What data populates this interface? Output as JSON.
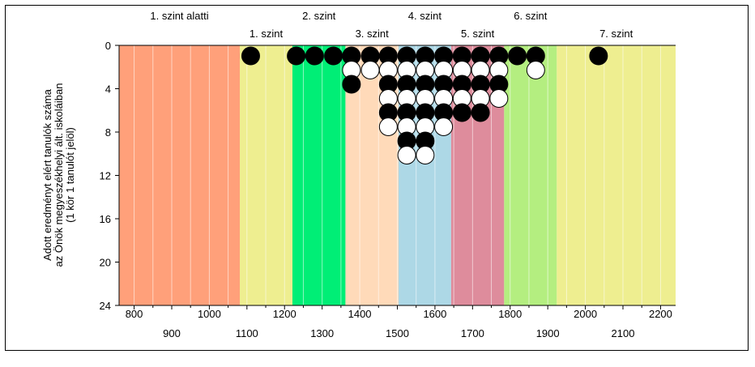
{
  "chart_data": {
    "type": "scatter",
    "ylabel_lines": [
      "Adott eredményt elért tanulók száma",
      "az Önök megyeszékhelyi ált. iskoláiban",
      "(1 kör 1 tanulót jelöl)"
    ],
    "xlim": [
      760,
      2240
    ],
    "ylim": [
      24,
      0
    ],
    "y_ticks": [
      0,
      4,
      8,
      12,
      16,
      20,
      24
    ],
    "x_ticks_upper": [
      800,
      1000,
      1200,
      1400,
      1600,
      1800,
      2000,
      2200
    ],
    "x_ticks_lower": [
      900,
      1100,
      1300,
      1500,
      1700,
      1900,
      2100
    ],
    "grid": "vertical every 50",
    "levels": [
      {
        "label": "1. szint alatti",
        "from": 760,
        "to": 1081,
        "color": "#ffa07a",
        "row": "top"
      },
      {
        "label": "1. szint",
        "from": 1081,
        "to": 1221,
        "color": "#eeee90",
        "row": "bottom"
      },
      {
        "label": "2. szint",
        "from": 1221,
        "to": 1362,
        "color": "#00ee76",
        "row": "top"
      },
      {
        "label": "3. szint",
        "from": 1362,
        "to": 1503,
        "color": "#ffdab9",
        "row": "bottom"
      },
      {
        "label": "4. szint",
        "from": 1503,
        "to": 1643,
        "color": "#add8e6",
        "row": "top"
      },
      {
        "label": "5. szint",
        "from": 1643,
        "to": 1784,
        "color": "#de8c9c",
        "row": "bottom"
      },
      {
        "label": "6. szint",
        "from": 1784,
        "to": 1924,
        "color": "#b4ee80",
        "row": "top"
      },
      {
        "label": "7. szint",
        "from": 1924,
        "to": 2240,
        "color": "#eeee90",
        "row": "bottom"
      }
    ],
    "columns": [
      {
        "x": 1110,
        "stack": [
          "black"
        ]
      },
      {
        "x": 1231,
        "stack": [
          "black"
        ]
      },
      {
        "x": 1280,
        "stack": [
          "black"
        ]
      },
      {
        "x": 1330,
        "stack": [
          "black"
        ]
      },
      {
        "x": 1378,
        "stack": [
          "black",
          "white",
          "black"
        ]
      },
      {
        "x": 1428,
        "stack": [
          "black",
          "white"
        ]
      },
      {
        "x": 1476,
        "stack": [
          "black",
          "white",
          "black",
          "white",
          "black",
          "white"
        ]
      },
      {
        "x": 1525,
        "stack": [
          "black",
          "white",
          "black",
          "white",
          "black",
          "white",
          "black",
          "white"
        ]
      },
      {
        "x": 1574,
        "stack": [
          "black",
          "white",
          "black",
          "white",
          "black",
          "white",
          "black",
          "white"
        ]
      },
      {
        "x": 1623,
        "stack": [
          "black",
          "white",
          "black",
          "white",
          "black",
          "white"
        ]
      },
      {
        "x": 1672,
        "stack": [
          "black",
          "white",
          "black",
          "white",
          "black"
        ]
      },
      {
        "x": 1721,
        "stack": [
          "black",
          "white",
          "black",
          "white",
          "black"
        ]
      },
      {
        "x": 1770,
        "stack": [
          "black",
          "white",
          "black",
          "white"
        ]
      },
      {
        "x": 1819,
        "stack": [
          "black"
        ]
      },
      {
        "x": 1868,
        "stack": [
          "black",
          "white"
        ]
      },
      {
        "x": 2035,
        "stack": [
          "black"
        ]
      }
    ]
  }
}
